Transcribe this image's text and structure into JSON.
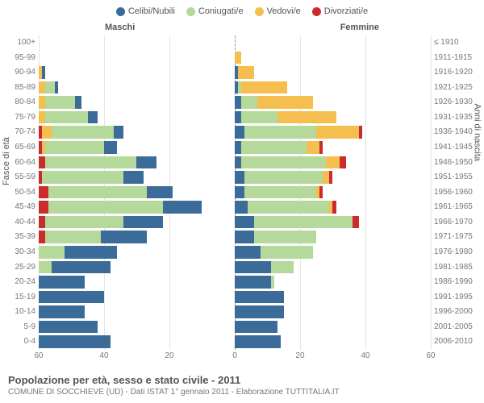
{
  "legend": [
    {
      "label": "Celibi/Nubili",
      "color": "#3b6c99"
    },
    {
      "label": "Coniugati/e",
      "color": "#b4d99a"
    },
    {
      "label": "Vedovi/e",
      "color": "#f5bf4f"
    },
    {
      "label": "Divorziati/e",
      "color": "#cc2b2b"
    }
  ],
  "gender_labels": {
    "male": "Maschi",
    "female": "Femmine"
  },
  "axis_titles": {
    "left": "Fasce di età",
    "right": "Anni di nascita"
  },
  "colors": {
    "celibi": "#3b6c99",
    "coniugati": "#b4d99a",
    "vedovi": "#f5bf4f",
    "divorziati": "#cc2b2b",
    "grid": "#e5e5e5",
    "centerline": "#999999",
    "text": "#555555",
    "background": "#ffffff"
  },
  "x_axis": {
    "max": 60,
    "ticks": [
      60,
      40,
      20,
      0,
      20,
      40,
      60
    ]
  },
  "age_groups": [
    {
      "age": "100+",
      "birth": "≤ 1910",
      "m": {
        "c": 0,
        "co": 0,
        "v": 0,
        "d": 0
      },
      "f": {
        "c": 0,
        "co": 0,
        "v": 0,
        "d": 0
      }
    },
    {
      "age": "95-99",
      "birth": "1911-1915",
      "m": {
        "c": 0,
        "co": 0,
        "v": 0,
        "d": 0
      },
      "f": {
        "c": 0,
        "co": 0,
        "v": 2,
        "d": 0
      }
    },
    {
      "age": "90-94",
      "birth": "1916-1920",
      "m": {
        "c": 1,
        "co": 0,
        "v": 1,
        "d": 0
      },
      "f": {
        "c": 1,
        "co": 0,
        "v": 5,
        "d": 0
      }
    },
    {
      "age": "85-89",
      "birth": "1921-1925",
      "m": {
        "c": 1,
        "co": 3,
        "v": 2,
        "d": 0
      },
      "f": {
        "c": 1,
        "co": 1,
        "v": 14,
        "d": 0
      }
    },
    {
      "age": "80-84",
      "birth": "1926-1930",
      "m": {
        "c": 2,
        "co": 9,
        "v": 2,
        "d": 0
      },
      "f": {
        "c": 2,
        "co": 5,
        "v": 17,
        "d": 0
      }
    },
    {
      "age": "75-79",
      "birth": "1931-1935",
      "m": {
        "c": 3,
        "co": 13,
        "v": 2,
        "d": 0
      },
      "f": {
        "c": 2,
        "co": 11,
        "v": 18,
        "d": 0
      }
    },
    {
      "age": "70-74",
      "birth": "1936-1940",
      "m": {
        "c": 3,
        "co": 19,
        "v": 3,
        "d": 1
      },
      "f": {
        "c": 3,
        "co": 22,
        "v": 13,
        "d": 1
      }
    },
    {
      "age": "65-69",
      "birth": "1941-1945",
      "m": {
        "c": 4,
        "co": 18,
        "v": 1,
        "d": 1
      },
      "f": {
        "c": 2,
        "co": 20,
        "v": 4,
        "d": 1
      }
    },
    {
      "age": "60-64",
      "birth": "1946-1950",
      "m": {
        "c": 6,
        "co": 28,
        "v": 0,
        "d": 2
      },
      "f": {
        "c": 2,
        "co": 26,
        "v": 4,
        "d": 2
      }
    },
    {
      "age": "55-59",
      "birth": "1951-1955",
      "m": {
        "c": 6,
        "co": 25,
        "v": 0,
        "d": 1
      },
      "f": {
        "c": 3,
        "co": 24,
        "v": 2,
        "d": 1
      }
    },
    {
      "age": "50-54",
      "birth": "1956-1960",
      "m": {
        "c": 8,
        "co": 30,
        "v": 0,
        "d": 3
      },
      "f": {
        "c": 3,
        "co": 22,
        "v": 1,
        "d": 1
      }
    },
    {
      "age": "45-49",
      "birth": "1961-1965",
      "m": {
        "c": 12,
        "co": 35,
        "v": 0,
        "d": 3
      },
      "f": {
        "c": 4,
        "co": 25,
        "v": 1,
        "d": 1
      }
    },
    {
      "age": "40-44",
      "birth": "1966-1970",
      "m": {
        "c": 12,
        "co": 24,
        "v": 0,
        "d": 2
      },
      "f": {
        "c": 6,
        "co": 30,
        "v": 0,
        "d": 2
      }
    },
    {
      "age": "35-39",
      "birth": "1971-1975",
      "m": {
        "c": 14,
        "co": 17,
        "v": 0,
        "d": 2
      },
      "f": {
        "c": 6,
        "co": 19,
        "v": 0,
        "d": 0
      }
    },
    {
      "age": "30-34",
      "birth": "1976-1980",
      "m": {
        "c": 16,
        "co": 8,
        "v": 0,
        "d": 0
      },
      "f": {
        "c": 8,
        "co": 16,
        "v": 0,
        "d": 0
      }
    },
    {
      "age": "25-29",
      "birth": "1981-1985",
      "m": {
        "c": 18,
        "co": 4,
        "v": 0,
        "d": 0
      },
      "f": {
        "c": 11,
        "co": 7,
        "v": 0,
        "d": 0
      }
    },
    {
      "age": "20-24",
      "birth": "1986-1990",
      "m": {
        "c": 14,
        "co": 0,
        "v": 0,
        "d": 0
      },
      "f": {
        "c": 11,
        "co": 1,
        "v": 0,
        "d": 0
      }
    },
    {
      "age": "15-19",
      "birth": "1991-1995",
      "m": {
        "c": 20,
        "co": 0,
        "v": 0,
        "d": 0
      },
      "f": {
        "c": 15,
        "co": 0,
        "v": 0,
        "d": 0
      }
    },
    {
      "age": "10-14",
      "birth": "1996-2000",
      "m": {
        "c": 14,
        "co": 0,
        "v": 0,
        "d": 0
      },
      "f": {
        "c": 15,
        "co": 0,
        "v": 0,
        "d": 0
      }
    },
    {
      "age": "5-9",
      "birth": "2001-2005",
      "m": {
        "c": 18,
        "co": 0,
        "v": 0,
        "d": 0
      },
      "f": {
        "c": 13,
        "co": 0,
        "v": 0,
        "d": 0
      }
    },
    {
      "age": "0-4",
      "birth": "2006-2010",
      "m": {
        "c": 22,
        "co": 0,
        "v": 0,
        "d": 0
      },
      "f": {
        "c": 14,
        "co": 0,
        "v": 0,
        "d": 0
      }
    }
  ],
  "footer": {
    "title": "Popolazione per età, sesso e stato civile - 2011",
    "sub": "COMUNE DI SOCCHIEVE (UD) - Dati ISTAT 1° gennaio 2011 - Elaborazione TUTTITALIA.IT"
  }
}
